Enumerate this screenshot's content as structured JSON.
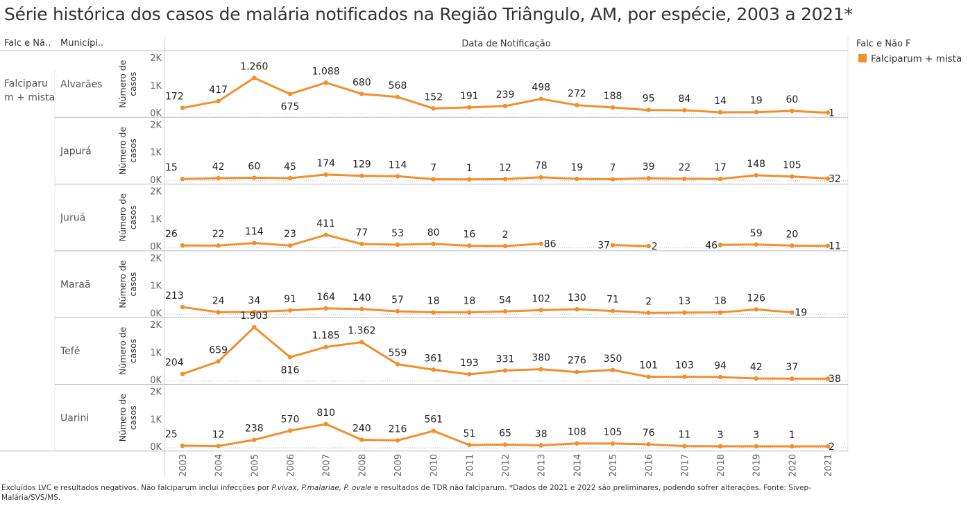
{
  "title": "Série histórica dos casos de malária notificados na Região Triângulo, AM, por espécie, 2003 a 2021*",
  "headers": {
    "species_col": "Falc e Nã..",
    "muni_col": "Municípi..",
    "x_header": "Data de Notificação"
  },
  "species_label": "Falciparum + mista",
  "species_label_lines": [
    "Falciparu",
    "m + mista"
  ],
  "legend": {
    "title": "Falc e Não F",
    "item": "Falciparum + mista",
    "color": "#f28e2b"
  },
  "footnote": {
    "part1": "Excluídos LVC e resultados negativos. Não falciparum inclui infecções por ",
    "italic1": "P.vivax, P.malariae, P. ovale",
    "part2": " e resultados de TDR não falciparum. *Dados de 2021 e 2022 são preliminares, podendo sofrer alterações. Fonte: Sivep-Malária/SVS/MS."
  },
  "chart_data": {
    "type": "line",
    "x": [
      "2003",
      "2004",
      "2005",
      "2006",
      "2007",
      "2008",
      "2009",
      "2010",
      "2011",
      "2012",
      "2013",
      "2014",
      "2015",
      "2016",
      "2017",
      "2018",
      "2019",
      "2020",
      "2021"
    ],
    "ylabel_lines": [
      "Número de",
      "casos"
    ],
    "yticks": [
      "0K",
      "1K",
      "2K"
    ],
    "ylim": [
      0,
      2000
    ],
    "color": "#f28e2b",
    "panels": [
      {
        "municipality": "Alvarães",
        "values": [
          172,
          417,
          1260,
          675,
          1088,
          680,
          568,
          152,
          191,
          239,
          498,
          272,
          188,
          95,
          84,
          14,
          19,
          60,
          1
        ],
        "labels": [
          "172",
          "417",
          "1.260",
          "675",
          "1.088",
          "680",
          "568",
          "152",
          "191",
          "239",
          "498",
          "272",
          "188",
          "95",
          "84",
          "14",
          "19",
          "60",
          "1"
        ]
      },
      {
        "municipality": "Japurá",
        "values": [
          15,
          42,
          60,
          45,
          174,
          129,
          114,
          7,
          1,
          12,
          78,
          19,
          7,
          39,
          22,
          17,
          148,
          105,
          32
        ],
        "labels": [
          "15",
          "42",
          "60",
          "45",
          "174",
          "129",
          "114",
          "7",
          "1",
          "12",
          "78",
          "19",
          "7",
          "39",
          "22",
          "17",
          "148",
          "105",
          "32"
        ]
      },
      {
        "municipality": "Juruá",
        "values": [
          26,
          22,
          114,
          23,
          411,
          77,
          53,
          80,
          16,
          2,
          86,
          null,
          37,
          2,
          null,
          46,
          59,
          20,
          11
        ],
        "labels": [
          "26",
          "22",
          "114",
          "23",
          "411",
          "77",
          "53",
          "80",
          "16",
          "2",
          "86",
          null,
          "37",
          "2",
          null,
          "46",
          "59",
          "20",
          "11"
        ]
      },
      {
        "municipality": "Maraã",
        "values": [
          213,
          24,
          34,
          91,
          164,
          140,
          57,
          18,
          18,
          54,
          102,
          130,
          71,
          2,
          13,
          18,
          126,
          19,
          null
        ],
        "labels": [
          "213",
          "24",
          "34",
          "91",
          "164",
          "140",
          "57",
          "18",
          "18",
          "54",
          "102",
          "130",
          "71",
          "2",
          "13",
          "18",
          "126",
          "19",
          null
        ]
      },
      {
        "municipality": "Tefé",
        "values": [
          204,
          659,
          1903,
          816,
          1185,
          1362,
          559,
          361,
          193,
          331,
          380,
          276,
          350,
          101,
          103,
          94,
          42,
          37,
          38
        ],
        "labels": [
          "204",
          "659",
          "1.903",
          "816",
          "1.185",
          "1.362",
          "559",
          "361",
          "193",
          "331",
          "380",
          "276",
          "350",
          "101",
          "103",
          "94",
          "42",
          "37",
          "38"
        ]
      },
      {
        "municipality": "Uarini",
        "values": [
          25,
          12,
          238,
          570,
          810,
          240,
          216,
          561,
          51,
          65,
          38,
          108,
          105,
          76,
          11,
          3,
          3,
          1,
          2
        ],
        "labels": [
          "25",
          "12",
          "238",
          "570",
          "810",
          "240",
          "216",
          "561",
          "51",
          "65",
          "38",
          "108",
          "105",
          "76",
          "11",
          "3",
          "3",
          "1",
          "2"
        ]
      }
    ]
  }
}
